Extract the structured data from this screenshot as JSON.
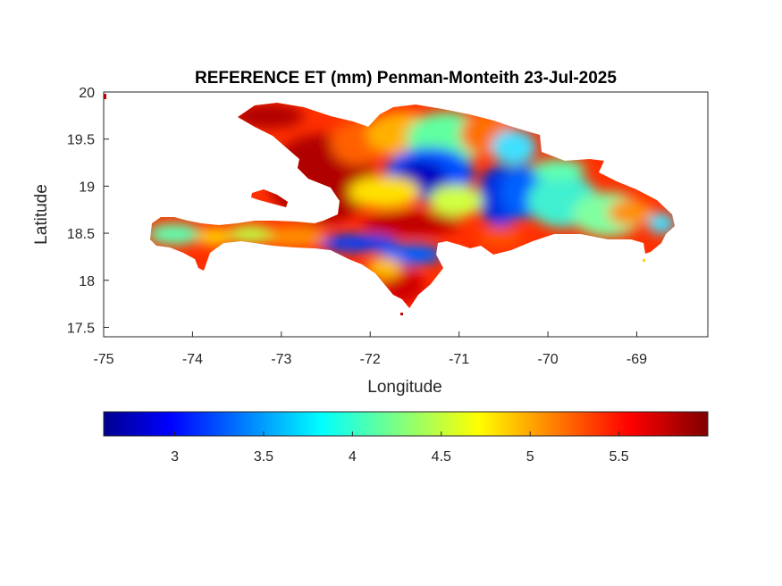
{
  "map": {
    "title": "REFERENCE ET (mm) Penman-Monteith 23-Jul-2025",
    "xlabel": "Longitude",
    "ylabel": "Latitude",
    "x_ticks": [
      "-75",
      "-74",
      "-73",
      "-72",
      "-71",
      "-70",
      "-69"
    ],
    "y_ticks": [
      "20",
      "19.5",
      "19",
      "18.5",
      "18",
      "17.5"
    ]
  },
  "colorbar": {
    "ticks": [
      "3",
      "3.5",
      "4",
      "4.5",
      "5",
      "5.5"
    ],
    "colormap": [
      "#00008f",
      "#0000ff",
      "#00ffff",
      "#ffff00",
      "#ff0000",
      "#800000"
    ]
  },
  "chart_data": {
    "type": "heatmap",
    "title": "REFERENCE ET (mm) Penman-Monteith 23-Jul-2025",
    "xlabel": "Longitude",
    "ylabel": "Latitude",
    "xlim": [
      -75,
      -68.2
    ],
    "ylim": [
      17.4,
      20
    ],
    "color_range": [
      2.6,
      6.0
    ],
    "grid": false,
    "regions": [
      {
        "name": "",
        "lon": -72.6,
        "lat": 19.2,
        "value": 5.5
      },
      {
        "name": "",
        "lon": -72.9,
        "lat": 19.7,
        "value": 5.6
      },
      {
        "name": "",
        "lon": -71.2,
        "lat": 19.05,
        "value": 3.2
      },
      {
        "name": "",
        "lon": -70.6,
        "lat": 18.85,
        "value": 3.0
      },
      {
        "name": "",
        "lon": -71.8,
        "lat": 18.4,
        "value": 3.2
      },
      {
        "name": "",
        "lon": -72.5,
        "lat": 18.45,
        "value": 3.5
      },
      {
        "name": "",
        "lon": -69.9,
        "lat": 18.9,
        "value": 4.0
      },
      {
        "name": "",
        "lon": -69.2,
        "lat": 18.75,
        "value": 4.3
      },
      {
        "name": "",
        "lon": -68.9,
        "lat": 18.65,
        "value": 5.0
      },
      {
        "name": "",
        "lon": -74.2,
        "lat": 18.45,
        "value": 4.2
      },
      {
        "name": "",
        "lon": -71.4,
        "lat": 17.9,
        "value": 5.6
      },
      {
        "name": "",
        "lon": -71.3,
        "lat": 19.6,
        "value": 4.8
      },
      {
        "name": "",
        "lon": -70.5,
        "lat": 19.4,
        "value": 4.1
      }
    ]
  }
}
